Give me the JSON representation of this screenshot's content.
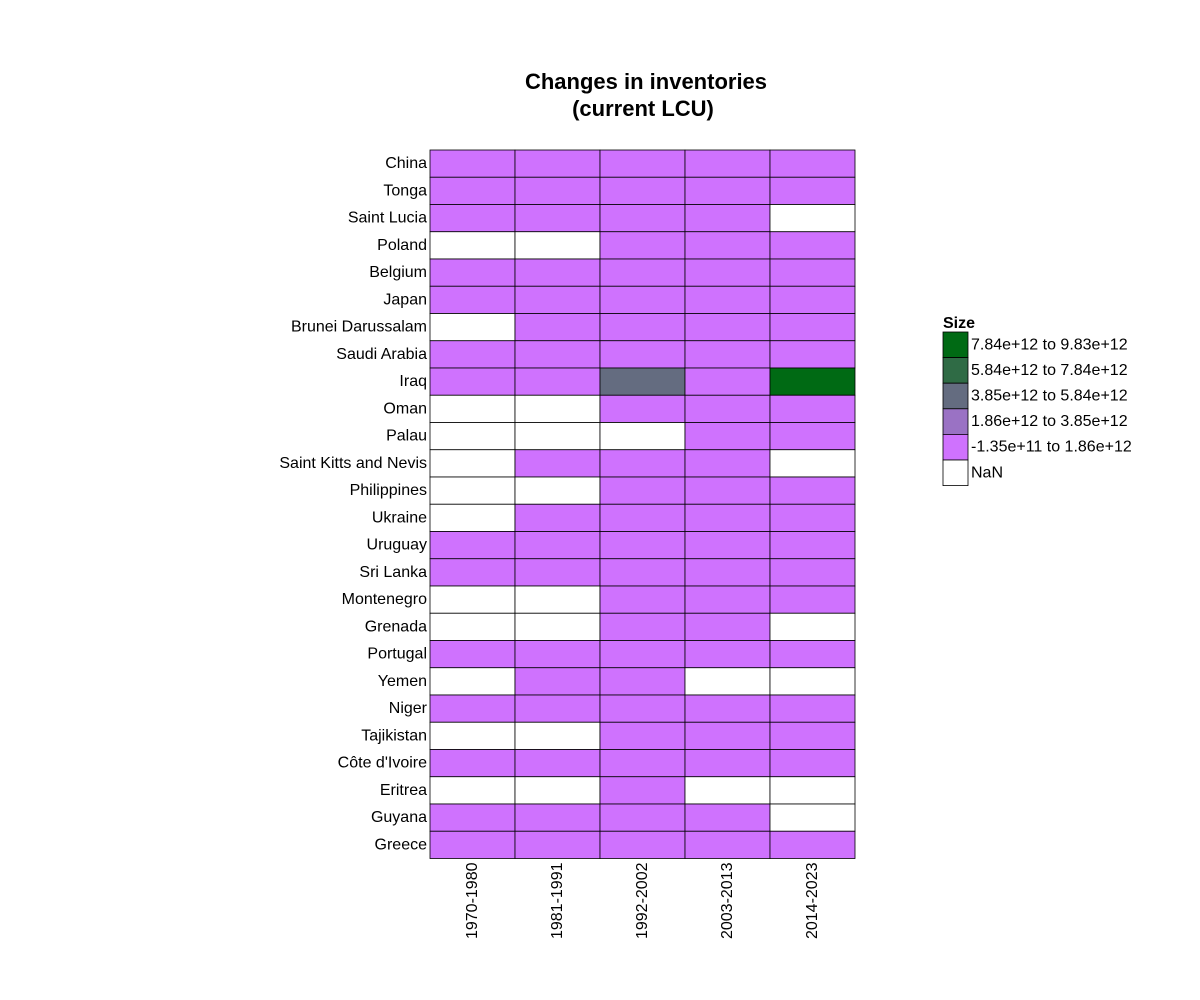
{
  "chart_data": {
    "type": "heatmap",
    "title_lines": [
      "Changes in inventories",
      "(current LCU)"
    ],
    "columns": [
      "1970-1980",
      "1981-1991",
      "1992-2002",
      "2003-2013",
      "2014-2023"
    ],
    "rows": [
      "China",
      "Tonga",
      "Saint Lucia",
      "Poland",
      "Belgium",
      "Japan",
      "Brunei Darussalam",
      "Saudi Arabia",
      "Iraq",
      "Oman",
      "Palau",
      "Saint Kitts and Nevis",
      "Philippines",
      "Ukraine",
      "Uruguay",
      "Sri Lanka",
      "Montenegro",
      "Grenada",
      "Portugal",
      "Yemen",
      "Niger",
      "Tajikistan",
      "Côte d'Ivoire",
      "Eritrea",
      "Guyana",
      "Greece"
    ],
    "cell_bins": [
      [
        1,
        1,
        1,
        1,
        1
      ],
      [
        1,
        1,
        1,
        1,
        1
      ],
      [
        1,
        1,
        1,
        1,
        0
      ],
      [
        0,
        0,
        1,
        1,
        1
      ],
      [
        1,
        1,
        1,
        1,
        1
      ],
      [
        1,
        1,
        1,
        1,
        1
      ],
      [
        0,
        1,
        1,
        1,
        1
      ],
      [
        1,
        1,
        1,
        1,
        1
      ],
      [
        1,
        1,
        3,
        1,
        5
      ],
      [
        0,
        0,
        1,
        1,
        1
      ],
      [
        0,
        0,
        0,
        1,
        1
      ],
      [
        0,
        1,
        1,
        1,
        0
      ],
      [
        0,
        0,
        1,
        1,
        1
      ],
      [
        0,
        1,
        1,
        1,
        1
      ],
      [
        1,
        1,
        1,
        1,
        1
      ],
      [
        1,
        1,
        1,
        1,
        1
      ],
      [
        0,
        0,
        1,
        1,
        1
      ],
      [
        0,
        0,
        1,
        1,
        0
      ],
      [
        1,
        1,
        1,
        1,
        1
      ],
      [
        0,
        1,
        1,
        0,
        0
      ],
      [
        1,
        1,
        1,
        1,
        1
      ],
      [
        0,
        0,
        1,
        1,
        1
      ],
      [
        1,
        1,
        1,
        1,
        1
      ],
      [
        0,
        0,
        1,
        0,
        0
      ],
      [
        1,
        1,
        1,
        1,
        0
      ],
      [
        1,
        1,
        1,
        1,
        1
      ]
    ],
    "legend": {
      "title": "Size",
      "bins": [
        {
          "bin": 5,
          "label": "7.84e+12 to 9.83e+12",
          "color": "#006a14"
        },
        {
          "bin": 4,
          "label": "5.84e+12 to 7.84e+12",
          "color": "#2f6b45"
        },
        {
          "bin": 3,
          "label": "3.85e+12 to 5.84e+12",
          "color": "#646c80"
        },
        {
          "bin": 2,
          "label": "1.86e+12 to 3.85e+12",
          "color": "#9a72c4"
        },
        {
          "bin": 1,
          "label": "-1.35e+11 to 1.86e+12",
          "color": "#cf72fe"
        },
        {
          "bin": 0,
          "label": "NaN",
          "color": "#ffffff"
        }
      ],
      "placement": "right"
    }
  }
}
